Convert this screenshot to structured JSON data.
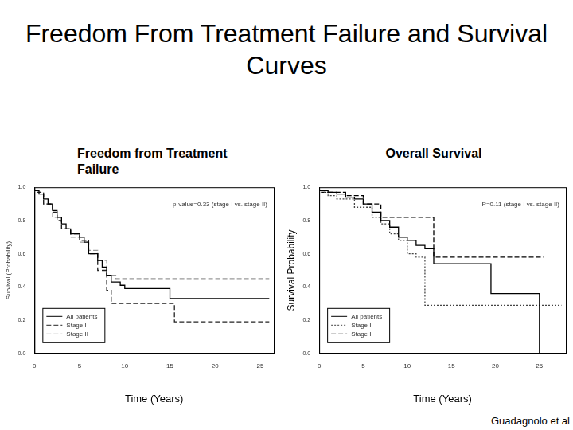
{
  "title": "Freedom From Treatment Failure and Survival Curves",
  "credit": "Guadagnolo et al",
  "chart_data": [
    {
      "type": "line",
      "title": "Freedom from Treatment Failure",
      "annotation": "p-value=0.33 (stage I vs. stage II)",
      "x_label": "Time (Years)",
      "y_label": "Survival (Probability)",
      "xlim": [
        0,
        26.5
      ],
      "xticks": [
        0,
        5,
        10,
        15,
        20,
        25
      ],
      "ylim": [
        0,
        1
      ],
      "yticks": [
        {
          "value": 0,
          "label": "0.0"
        },
        {
          "value": 0.2,
          "label": "0.2"
        },
        {
          "value": 0.4,
          "label": "0.4"
        },
        {
          "value": 0.6,
          "label": "0.6"
        },
        {
          "value": 0.8,
          "label": "0.8"
        },
        {
          "value": 1,
          "label": "1.0"
        }
      ],
      "grid": false,
      "legend": "lower left",
      "series": [
        {
          "name": "All patients",
          "color": "#000000",
          "line_style": "solid",
          "x": [
            0,
            0.5,
            1,
            1.5,
            2,
            2.5,
            3,
            3.5,
            4,
            5,
            5.5,
            6,
            7,
            7.5,
            8,
            8.5,
            9.5,
            10,
            15,
            16,
            26
          ],
          "values": [
            1,
            0.98,
            0.96,
            0.93,
            0.9,
            0.86,
            0.82,
            0.78,
            0.75,
            0.72,
            0.7,
            0.67,
            0.6,
            0.56,
            0.52,
            0.47,
            0.43,
            0.41,
            0.39,
            0.33,
            0.33
          ]
        },
        {
          "name": "Stage I",
          "color": "#222222",
          "line_style": "dashed",
          "x": [
            0,
            1,
            2,
            2.5,
            3,
            4,
            5,
            6,
            7,
            8,
            8.5,
            15.5,
            16,
            26
          ],
          "values": [
            1,
            0.97,
            0.9,
            0.85,
            0.8,
            0.75,
            0.72,
            0.68,
            0.6,
            0.5,
            0.38,
            0.3,
            0.19,
            0.19
          ]
        },
        {
          "name": "Stage II",
          "color": "#999999",
          "line_style": "dashed",
          "x": [
            0,
            1,
            2,
            3,
            4,
            5,
            6,
            7,
            8,
            9,
            10,
            26
          ],
          "values": [
            1,
            0.97,
            0.9,
            0.82,
            0.75,
            0.7,
            0.67,
            0.62,
            0.56,
            0.47,
            0.45,
            0.45
          ]
        }
      ]
    },
    {
      "type": "line",
      "title": "Overall Survival",
      "annotation": "P=0.11 (stage I vs. stage II)",
      "x_label": "Time (Years)",
      "y_label": "Survival Probability",
      "xlim": [
        0,
        28
      ],
      "xticks": [
        0,
        5,
        10,
        15,
        20,
        25
      ],
      "ylim": [
        0,
        1
      ],
      "yticks": [
        {
          "value": 0,
          "label": "0.0"
        },
        {
          "value": 0.2,
          "label": "0.2"
        },
        {
          "value": 0.4,
          "label": "0.4"
        },
        {
          "value": 0.6,
          "label": "0.6"
        },
        {
          "value": 0.8,
          "label": "0.8"
        },
        {
          "value": 1,
          "label": "1.0"
        }
      ],
      "grid": false,
      "legend": "lower left",
      "series": [
        {
          "name": "All patients",
          "color": "#000000",
          "line_style": "solid",
          "x": [
            0,
            1,
            2,
            3,
            4,
            5,
            6,
            7,
            8,
            9,
            10,
            11,
            12,
            13,
            19.5,
            25,
            27.5
          ],
          "values": [
            1,
            0.98,
            0.97,
            0.96,
            0.94,
            0.93,
            0.9,
            0.85,
            0.8,
            0.76,
            0.7,
            0.68,
            0.65,
            0.63,
            0.54,
            0.36,
            0
          ]
        },
        {
          "name": "Stage I",
          "color": "#444444",
          "line_style": "dotted",
          "x": [
            0,
            1,
            2,
            4,
            6,
            7,
            8,
            9,
            10,
            11,
            12,
            25,
            27.5
          ],
          "values": [
            1,
            0.97,
            0.95,
            0.93,
            0.88,
            0.82,
            0.78,
            0.72,
            0.68,
            0.6,
            0.58,
            0.29,
            0.29
          ]
        },
        {
          "name": "Stage II",
          "color": "#000000",
          "line_style": "dashed",
          "x": [
            0,
            3,
            5,
            7,
            13,
            19.5,
            25.5
          ],
          "values": [
            1,
            0.97,
            0.95,
            0.9,
            0.82,
            0.58,
            0.58
          ]
        }
      ]
    }
  ]
}
